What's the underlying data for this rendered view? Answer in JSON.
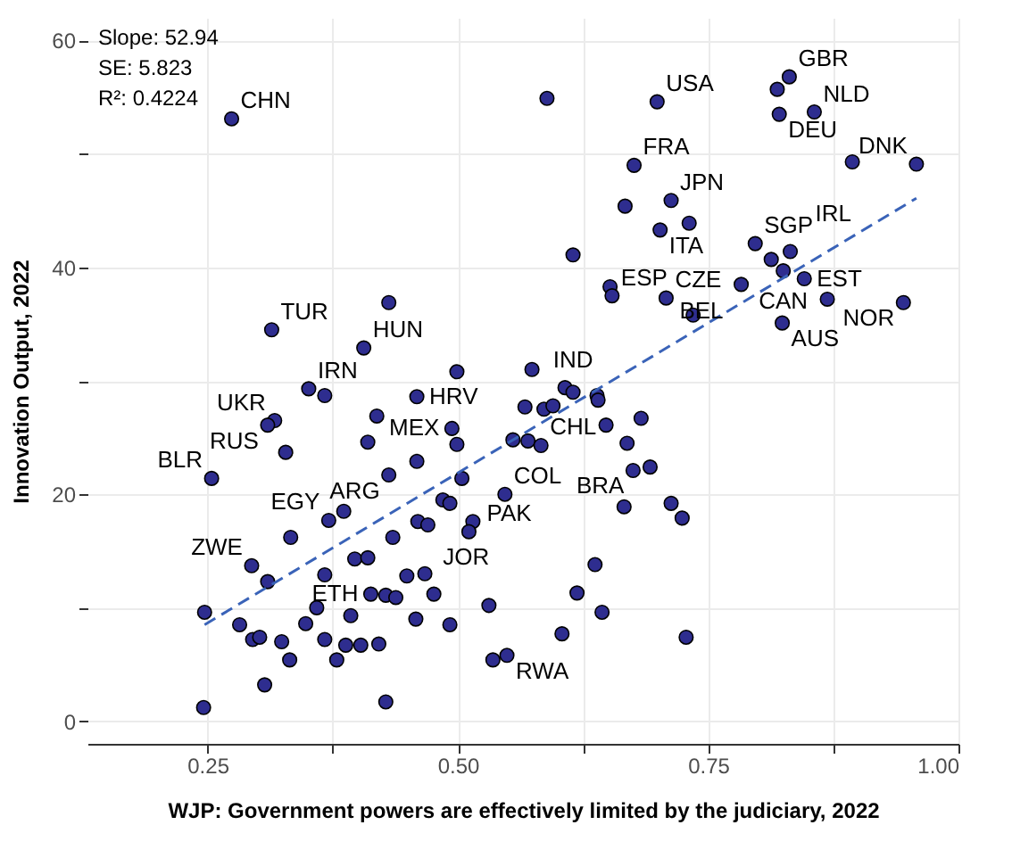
{
  "chart_data": {
    "type": "scatter",
    "xlabel": "WJP: Government powers are effectively limited by the judiciary, 2022",
    "ylabel": "Innovation Output, 2022",
    "xlim": [
      0.13,
      1.0
    ],
    "ylim": [
      -2,
      62
    ],
    "xticks": [
      {
        "value": 0.25,
        "label": "0.25"
      },
      {
        "value": 0.375,
        "label": null
      },
      {
        "value": 0.5,
        "label": "0.50"
      },
      {
        "value": 0.625,
        "label": null
      },
      {
        "value": 0.75,
        "label": "0.75"
      },
      {
        "value": 0.875,
        "label": null
      },
      {
        "value": 1.0,
        "label": "1.00"
      }
    ],
    "yticks": [
      0,
      {
        "value": 10,
        "label": null
      },
      20,
      {
        "value": 30,
        "label": null
      },
      40,
      {
        "value": 50,
        "label": null
      },
      60
    ],
    "grid": true,
    "legend": false,
    "series": [
      {
        "marker": "circle",
        "color": "#2e2d8f",
        "x": [
          0.274,
          0.314,
          0.431,
          0.406,
          0.351,
          0.367,
          0.589,
          0.699,
          0.676,
          0.713,
          0.667,
          0.702,
          0.731,
          0.615,
          0.652,
          0.654,
          0.708,
          0.735,
          0.499,
          0.574,
          0.607,
          0.639,
          0.459,
          0.831,
          0.819,
          0.856,
          0.821,
          0.894,
          0.958,
          0.797,
          0.832,
          0.813,
          0.825,
          0.846,
          0.783,
          0.869,
          0.945,
          0.824,
          0.317,
          0.31,
          0.419,
          0.41,
          0.328,
          0.254,
          0.431,
          0.386,
          0.371,
          0.333,
          0.435,
          0.294,
          0.31,
          0.367,
          0.397,
          0.41,
          0.247,
          0.282,
          0.295,
          0.302,
          0.324,
          0.332,
          0.359,
          0.348,
          0.367,
          0.393,
          0.388,
          0.403,
          0.421,
          0.379,
          0.307,
          0.246,
          0.428,
          0.413,
          0.428,
          0.438,
          0.449,
          0.615,
          0.567,
          0.586,
          0.595,
          0.64,
          0.494,
          0.499,
          0.555,
          0.57,
          0.583,
          0.648,
          0.683,
          0.669,
          0.675,
          0.692,
          0.459,
          0.504,
          0.547,
          0.485,
          0.492,
          0.666,
          0.713,
          0.724,
          0.46,
          0.47,
          0.515,
          0.511,
          0.467,
          0.476,
          0.637,
          0.619,
          0.531,
          0.644,
          0.458,
          0.492,
          0.604,
          0.728,
          0.535,
          0.549
        ],
        "values": [
          53.1,
          34.5,
          36.9,
          32.9,
          29.3,
          28.7,
          54.9,
          54.6,
          49.0,
          45.9,
          45.4,
          43.3,
          43.9,
          41.1,
          38.3,
          37.5,
          37.3,
          35.8,
          30.8,
          31.0,
          29.4,
          28.7,
          28.6,
          56.8,
          55.7,
          53.7,
          53.5,
          49.3,
          49.1,
          42.1,
          41.4,
          40.7,
          39.7,
          39.0,
          38.5,
          37.2,
          36.9,
          35.1,
          26.5,
          26.1,
          26.9,
          24.6,
          23.7,
          21.4,
          21.7,
          18.5,
          17.7,
          16.2,
          16.2,
          13.7,
          12.3,
          12.9,
          14.3,
          14.4,
          9.6,
          8.5,
          7.2,
          7.4,
          7.0,
          5.4,
          10.0,
          8.6,
          7.2,
          9.3,
          6.7,
          6.7,
          6.8,
          5.4,
          3.2,
          1.2,
          1.7,
          11.2,
          11.1,
          10.9,
          12.8,
          29.0,
          27.7,
          27.5,
          27.8,
          28.3,
          25.8,
          24.4,
          24.8,
          24.7,
          24.3,
          26.1,
          26.7,
          24.5,
          22.1,
          22.4,
          22.9,
          21.4,
          20.0,
          19.5,
          19.2,
          18.9,
          19.2,
          17.9,
          17.6,
          17.3,
          17.6,
          16.7,
          13.0,
          11.2,
          13.8,
          11.3,
          10.2,
          9.6,
          9.0,
          8.5,
          7.7,
          7.4,
          5.4,
          5.8
        ]
      },
      {
        "type": "line",
        "color": "#3a63b8",
        "line_style": "dashed",
        "x": [
          0.247,
          0.958
        ],
        "values": [
          8.5,
          46.1
        ]
      }
    ],
    "annotations": [
      "Slope: 52.94",
      "SE: 5.823",
      "R²: 0.4224",
      {
        "text": "CHN",
        "x": 0.274,
        "y": 53.1
      },
      {
        "text": "TUR",
        "x": 0.314,
        "y": 34.5
      },
      {
        "text": "HUN",
        "x": 0.406,
        "y": 32.9
      },
      {
        "text": "IRN",
        "x": 0.351,
        "y": 29.3
      },
      {
        "text": "USA",
        "x": 0.699,
        "y": 54.6
      },
      {
        "text": "FRA",
        "x": 0.676,
        "y": 49.0
      },
      {
        "text": "JPN",
        "x": 0.713,
        "y": 45.9
      },
      {
        "text": "ITA",
        "x": 0.702,
        "y": 43.3
      },
      {
        "text": "ESP",
        "x": 0.654,
        "y": 37.5
      },
      {
        "text": "CZE",
        "x": 0.708,
        "y": 37.3
      },
      {
        "text": "HRV",
        "x": 0.459,
        "y": 28.6
      },
      {
        "text": "GBR",
        "x": 0.831,
        "y": 56.8
      },
      {
        "text": "NLD",
        "x": 0.856,
        "y": 53.7
      },
      {
        "text": "DEU",
        "x": 0.821,
        "y": 53.5
      },
      {
        "text": "DNK",
        "x": 0.958,
        "y": 49.1
      },
      {
        "text": "SGP",
        "x": 0.797,
        "y": 42.1
      },
      {
        "text": "IRL",
        "x": 0.832,
        "y": 41.4
      },
      {
        "text": "CAN",
        "x": 0.825,
        "y": 39.7
      },
      {
        "text": "EST",
        "x": 0.846,
        "y": 39.0
      },
      {
        "text": "BEL",
        "x": 0.783,
        "y": 38.5
      },
      {
        "text": "NOR",
        "x": 0.945,
        "y": 36.9
      },
      {
        "text": "AUS",
        "x": 0.824,
        "y": 35.1
      },
      {
        "text": "UKR",
        "x": 0.317,
        "y": 26.5
      },
      {
        "text": "RUS",
        "x": 0.31,
        "y": 26.1
      },
      {
        "text": "BLR",
        "x": 0.254,
        "y": 21.4
      },
      {
        "text": "ARG",
        "x": 0.431,
        "y": 21.7
      },
      {
        "text": "EGY",
        "x": 0.371,
        "y": 17.7
      },
      {
        "text": "ZWE",
        "x": 0.294,
        "y": 13.7
      },
      {
        "text": "ETH",
        "x": 0.413,
        "y": 11.2
      },
      {
        "text": "IND",
        "x": 0.615,
        "y": 29.0
      },
      {
        "text": "MEX",
        "x": 0.494,
        "y": 25.8
      },
      {
        "text": "CHL",
        "x": 0.583,
        "y": 24.3
      },
      {
        "text": "BRA",
        "x": 0.675,
        "y": 22.1
      },
      {
        "text": "PAK",
        "x": 0.504,
        "y": 21.4
      },
      {
        "text": "COL",
        "x": 0.547,
        "y": 20.0
      },
      {
        "text": "JOR",
        "x": 0.46,
        "y": 17.6
      },
      {
        "text": "RWA",
        "x": 0.549,
        "y": 5.8
      }
    ]
  }
}
